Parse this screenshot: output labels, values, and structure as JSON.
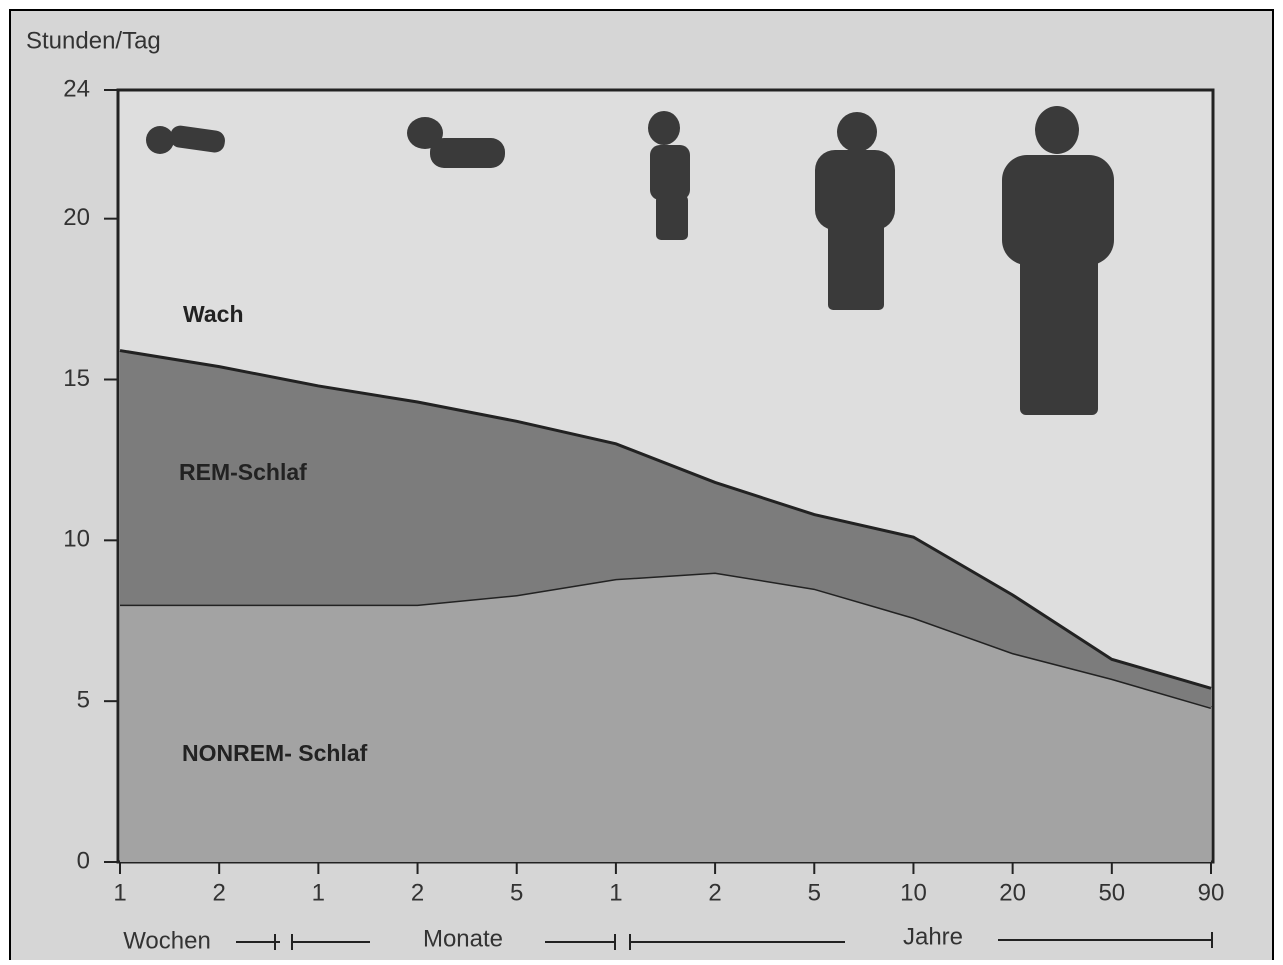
{
  "chart_data": {
    "type": "stacked_area",
    "y_label": "Stunden/Tag",
    "categories": [
      "1",
      "2",
      "1",
      "2",
      "5",
      "1",
      "2",
      "5",
      "10",
      "20",
      "50",
      "90"
    ],
    "x_groups": [
      "Wochen",
      "Monate",
      "Jahre"
    ],
    "series": [
      {
        "name": "NONREM- Schlaf",
        "color": "#a3a3a3",
        "values": [
          8,
          8,
          8,
          8,
          8.3,
          8.8,
          9,
          8.5,
          7.6,
          6.5,
          5.7,
          4.8
        ]
      },
      {
        "name": "REM-Schlaf",
        "color": "#7c7c7c",
        "values": [
          7.9,
          7.4,
          6.8,
          6.3,
          5.4,
          4.2,
          2.8,
          2.3,
          2.5,
          1.8,
          0.6,
          0.6
        ]
      }
    ],
    "rest_label": "Wach",
    "ylim": [
      0,
      24
    ],
    "yticks": [
      0,
      5,
      10,
      15,
      20,
      24
    ]
  }
}
